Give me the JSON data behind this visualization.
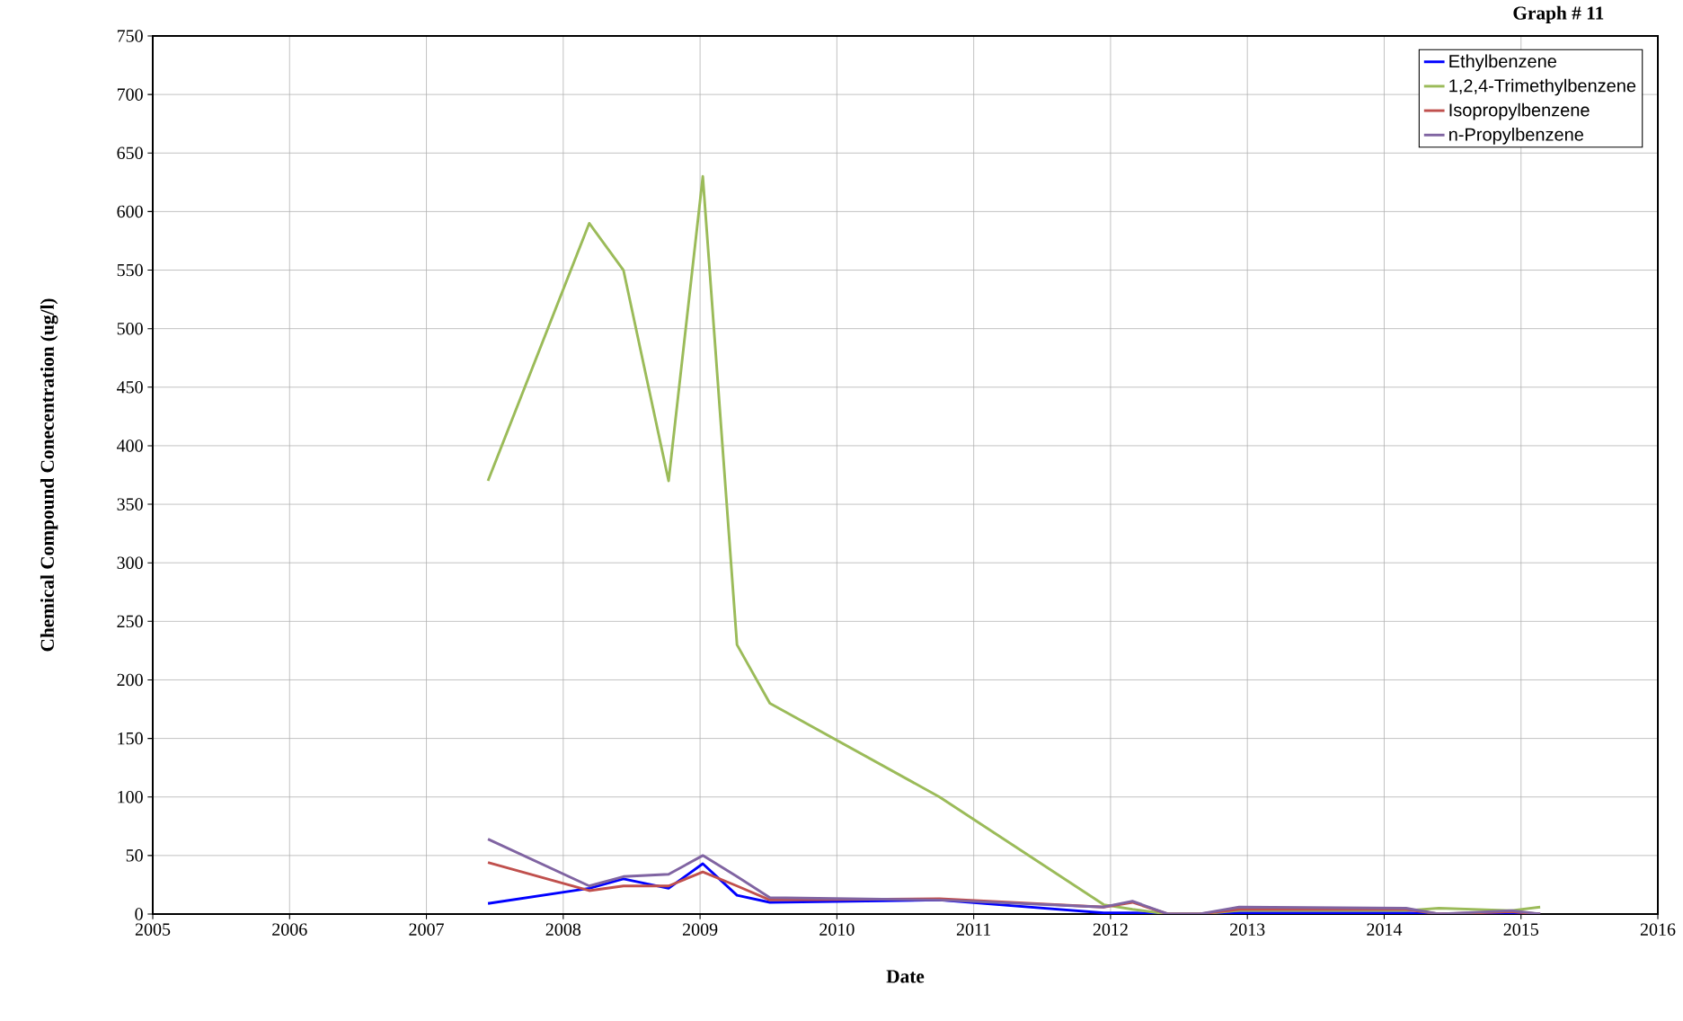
{
  "chart_data": {
    "type": "line",
    "title": "Graph # 11",
    "xlabel": "Date",
    "ylabel": "Chemical Compound Conecentration (ug/l)",
    "x": [
      2007.45,
      2008.19,
      2008.44,
      2008.77,
      2009.02,
      2009.27,
      2009.51,
      2010.75,
      2011.95,
      2012.16,
      2012.42,
      2012.65,
      2012.94,
      2014.16,
      2014.4,
      2014.93,
      2015.14
    ],
    "series": [
      {
        "name": "Ethylbenzene",
        "color": "#0000ff",
        "values": [
          9,
          22,
          30,
          22,
          43,
          16,
          10,
          12,
          1,
          1,
          0,
          0,
          1,
          1,
          0,
          1,
          0
        ]
      },
      {
        "name": "1,2,4-Trimethylbenzene",
        "color": "#9bbb59",
        "values": [
          370,
          590,
          550,
          370,
          630,
          230,
          180,
          100,
          8,
          4,
          0,
          0,
          3,
          3,
          5,
          3,
          6
        ]
      },
      {
        "name": "Isopropylbenzene",
        "color": "#c0504d",
        "values": [
          44,
          20,
          24,
          24,
          36,
          24,
          12,
          13,
          6,
          10,
          0,
          0,
          4,
          4,
          0,
          2,
          0
        ]
      },
      {
        "name": "n-Propylbenzene",
        "color": "#8064a2",
        "values": [
          64,
          24,
          32,
          34,
          50,
          32,
          14,
          12,
          6,
          11,
          0,
          0,
          6,
          5,
          0,
          3,
          0
        ]
      }
    ],
    "xlim": [
      2005,
      2016
    ],
    "xticks": [
      2005,
      2006,
      2007,
      2008,
      2009,
      2010,
      2011,
      2012,
      2013,
      2014,
      2015,
      2016
    ],
    "ylim": [
      0,
      750
    ],
    "yticks": [
      0,
      50,
      100,
      150,
      200,
      250,
      300,
      350,
      400,
      450,
      500,
      550,
      600,
      650,
      700,
      750
    ],
    "grid": true,
    "legend": "top right",
    "marker": "none",
    "line_style": "solid"
  }
}
